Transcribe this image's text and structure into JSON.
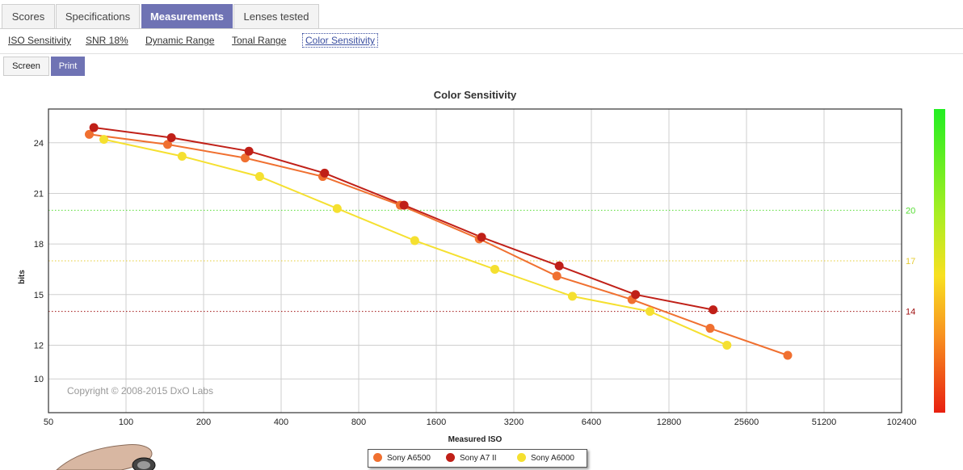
{
  "tabs": [
    {
      "label": "Scores",
      "active": false
    },
    {
      "label": "Specifications",
      "active": false
    },
    {
      "label": "Measurements",
      "active": true
    },
    {
      "label": "Lenses tested",
      "active": false
    }
  ],
  "subnav": [
    {
      "label": "ISO Sensitivity",
      "active": false
    },
    {
      "label": "SNR 18%",
      "active": false
    },
    {
      "label": "Dynamic Range",
      "active": false
    },
    {
      "label": "Tonal Range",
      "active": false
    },
    {
      "label": "Color Sensitivity",
      "active": true
    }
  ],
  "modes": [
    {
      "label": "Screen",
      "active": false
    },
    {
      "label": "Print",
      "active": true
    }
  ],
  "copyright": "Copyright © 2008-2015 DxO Labs",
  "chart_data": {
    "type": "line",
    "title": "Color Sensitivity",
    "xlabel": "Measured ISO",
    "ylabel": "bits",
    "x_scale": "log2",
    "xlim": [
      50,
      102400
    ],
    "ylim": [
      8,
      26
    ],
    "x_ticks": [
      50,
      100,
      200,
      400,
      800,
      1600,
      3200,
      6400,
      12800,
      25600,
      51200,
      102400
    ],
    "x_tick_labels": [
      "50",
      "100",
      "200",
      "400",
      "800",
      "1600",
      "3200",
      "6400",
      "12800",
      "25600",
      "51200",
      "102400"
    ],
    "y_ticks": [
      10,
      12,
      15,
      18,
      21,
      24
    ],
    "y_tick_labels": [
      "10",
      "12",
      "15",
      "18",
      "21",
      "24"
    ],
    "grid": true,
    "reference_lines": [
      {
        "y": 20,
        "label": "20",
        "color": "#55dd33"
      },
      {
        "y": 17,
        "label": "17",
        "color": "#e6cc33"
      },
      {
        "y": 14,
        "label": "14",
        "color": "#a01010"
      }
    ],
    "colorbar": true,
    "legend_position": "bottom-center",
    "series": [
      {
        "name": "Sony A6500",
        "color": "#f07030",
        "x": [
          72,
          145,
          290,
          580,
          1160,
          2350,
          4700,
          9200,
          18500,
          37000
        ],
        "y": [
          24.5,
          23.9,
          23.1,
          22.0,
          20.3,
          18.3,
          16.1,
          14.7,
          13.0,
          11.4
        ]
      },
      {
        "name": "Sony A7 II",
        "color": "#c02018",
        "x": [
          75,
          150,
          300,
          590,
          1200,
          2400,
          4800,
          9500,
          19000
        ],
        "y": [
          24.9,
          24.3,
          23.5,
          22.2,
          20.3,
          18.4,
          16.7,
          15.0,
          14.1
        ]
      },
      {
        "name": "Sony A6000",
        "color": "#f5e030",
        "x": [
          82,
          165,
          330,
          660,
          1320,
          2700,
          5400,
          10800,
          21500
        ],
        "y": [
          24.2,
          23.2,
          22.0,
          20.1,
          18.2,
          16.5,
          14.9,
          14.0,
          12.0
        ]
      }
    ]
  }
}
